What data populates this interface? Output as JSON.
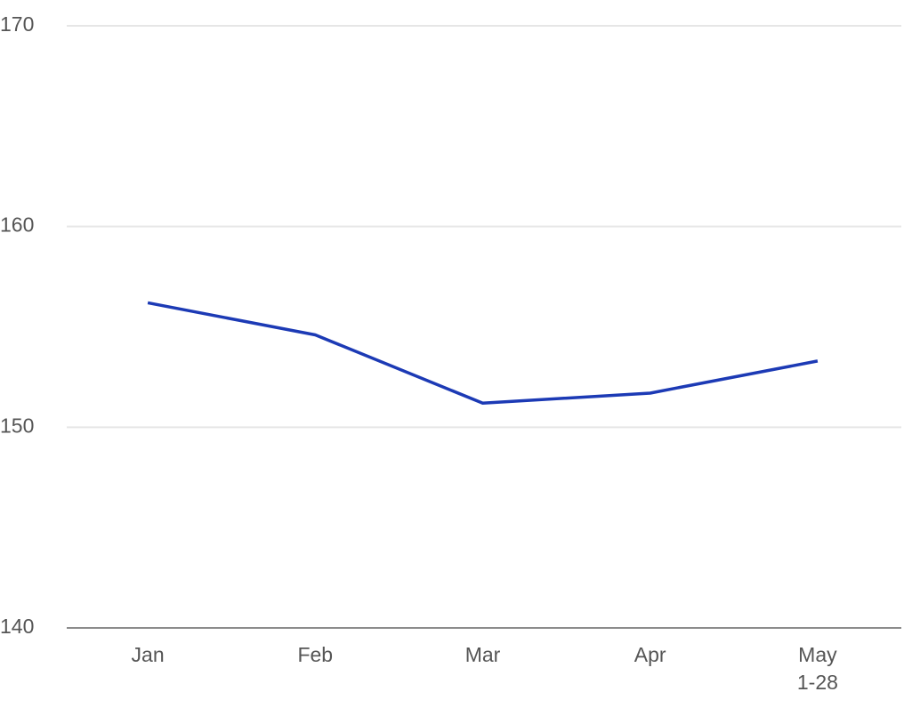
{
  "chart_data": {
    "type": "line",
    "categories": [
      "Jan",
      "Feb",
      "Mar",
      "Apr",
      "May 1-28"
    ],
    "series": [
      {
        "color": "#1c3ab5",
        "values": [
          156.2,
          154.6,
          151.2,
          151.7,
          153.3
        ]
      }
    ],
    "ylim": [
      140,
      170
    ],
    "yticks": [
      140,
      150,
      160,
      170
    ],
    "grid": true
  }
}
